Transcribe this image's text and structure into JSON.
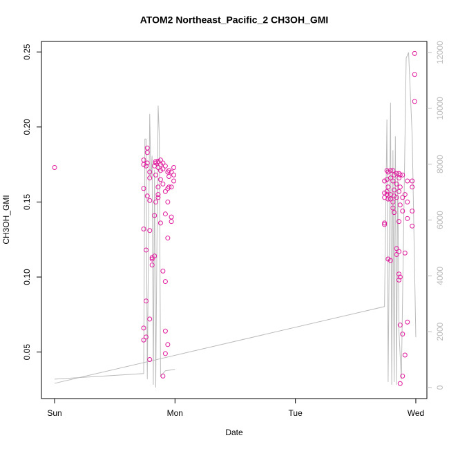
{
  "chart_data": {
    "type": "scatter",
    "title": "ATOM2 Northeast_Pacific_2 CH3OH_GMI",
    "x_label": "Date",
    "y_label": "CH3OH_GMI",
    "xlim": [
      -0.109,
      3.092
    ],
    "xticks": [
      {
        "value": 0,
        "label": "Sun"
      },
      {
        "value": 1,
        "label": "Mon"
      },
      {
        "value": 2,
        "label": "Tue"
      },
      {
        "value": 3,
        "label": "Wed"
      }
    ],
    "ylim": [
      0.019,
      0.257
    ],
    "yticks": [
      0.05,
      {
        "value": 0.1,
        "label": "0.10"
      },
      0.15,
      {
        "value": 0.2,
        "label": "0.20"
      },
      0.25
    ],
    "y2lim": [
      -396,
      12396
    ],
    "y2ticks": [
      0,
      2000,
      4000,
      6000,
      8000,
      10000,
      12000
    ],
    "y2tick_color": "#bbbbbb",
    "series": [
      {
        "type": "scatter",
        "color": "#e0189c",
        "x": [
          0,
          0.74,
          0.74,
          0.74,
          0.74,
          0.74,
          0.74,
          0.76,
          0.76,
          0.76,
          0.76,
          0.77,
          0.77,
          0.77,
          0.77,
          0.79,
          0.79,
          0.79,
          0.79,
          0.79,
          0.79,
          0.81,
          0.81,
          0.81,
          0.83,
          0.83,
          0.83,
          0.84,
          0.84,
          0.84,
          0.84,
          0.86,
          0.86,
          0.86,
          0.86,
          0.86,
          0.88,
          0.88,
          0.88,
          0.88,
          0.88,
          0.9,
          0.9,
          0.9,
          0.9,
          0.9,
          0.92,
          0.92,
          0.92,
          0.92,
          0.92,
          0.92,
          0.94,
          0.94,
          0.94,
          0.94,
          0.94,
          0.95,
          0.95,
          0.95,
          0.97,
          0.97,
          0.97,
          0.97,
          0.99,
          0.99,
          0.99,
          2.74,
          2.74,
          2.74,
          2.74,
          2.74,
          2.76,
          2.76,
          2.76,
          2.76,
          2.77,
          2.77,
          2.77,
          2.77,
          2.79,
          2.79,
          2.79,
          2.79,
          2.79,
          2.81,
          2.81,
          2.81,
          2.81,
          2.82,
          2.82,
          2.82,
          2.82,
          2.84,
          2.84,
          2.84,
          2.84,
          2.84,
          2.86,
          2.86,
          2.86,
          2.86,
          2.86,
          2.86,
          2.86,
          2.87,
          2.87,
          2.87,
          2.87,
          2.87,
          2.87,
          2.89,
          2.89,
          2.89,
          2.89,
          2.89,
          2.91,
          2.91,
          2.91,
          2.93,
          2.93,
          2.93,
          2.93,
          2.97,
          2.97,
          2.97,
          2.97,
          2.99,
          2.99,
          2.99
        ],
        "values": [
          0.173,
          0.178,
          0.175,
          0.159,
          0.132,
          0.066,
          0.058,
          0.174,
          0.118,
          0.084,
          0.06,
          0.186,
          0.183,
          0.176,
          0.154,
          0.17,
          0.166,
          0.151,
          0.131,
          0.072,
          0.045,
          0.112,
          0.108,
          0.113,
          0.174,
          0.141,
          0.114,
          0.177,
          0.176,
          0.168,
          0.15,
          0.177,
          0.173,
          0.16,
          0.155,
          0.153,
          0.178,
          0.175,
          0.171,
          0.165,
          0.136,
          0.176,
          0.172,
          0.162,
          0.104,
          0.034,
          0.174,
          0.157,
          0.142,
          0.097,
          0.064,
          0.049,
          0.17,
          0.159,
          0.15,
          0.126,
          0.055,
          0.171,
          0.167,
          0.16,
          0.17,
          0.16,
          0.14,
          0.137,
          0.173,
          0.168,
          0.164,
          0.164,
          0.156,
          0.153,
          0.136,
          0.135,
          0.171,
          0.165,
          0.157,
          0.155,
          0.17,
          0.16,
          0.152,
          0.112,
          0.171,
          0.166,
          0.155,
          0.152,
          0.111,
          0.171,
          0.164,
          0.15,
          0.146,
          0.168,
          0.158,
          0.154,
          0.143,
          0.169,
          0.162,
          0.153,
          0.119,
          0.115,
          0.169,
          0.166,
          0.157,
          0.137,
          0.117,
          0.102,
          0.098,
          0.168,
          0.16,
          0.148,
          0.1,
          0.068,
          0.029,
          0.168,
          0.153,
          0.144,
          0.062,
          0.034,
          0.155,
          0.116,
          0.048,
          0.164,
          0.15,
          0.139,
          0.07,
          0.164,
          0.16,
          0.144,
          0.134,
          0.249,
          0.235,
          0.217
        ]
      },
      {
        "type": "line",
        "axis": "y2",
        "color": "#bbbbbb",
        "x": [
          0,
          2.74,
          2.76,
          2.77,
          2.79,
          2.8,
          2.81,
          2.82,
          2.83,
          2.84,
          2.85,
          2.86,
          2.88,
          2.92,
          2.94,
          2.95,
          2.97,
          3.0,
          null,
          0,
          0.74,
          0.75,
          0.76,
          0.77,
          0.79,
          0.8,
          0.81,
          0.82,
          0.83,
          0.84,
          0.86,
          0.87,
          0.88,
          0.92,
          1.0
        ],
        "values": [
          150,
          2900,
          9600,
          200,
          10200,
          100,
          8500,
          200,
          9000,
          100,
          7700,
          2000,
          300,
          11800,
          12000,
          11000,
          9000,
          1800,
          null,
          300,
          500,
          8900,
          8900,
          300,
          9800,
          7500,
          8300,
          100,
          7800,
          0,
          10100,
          9000,
          400,
          600,
          650
        ]
      }
    ]
  }
}
